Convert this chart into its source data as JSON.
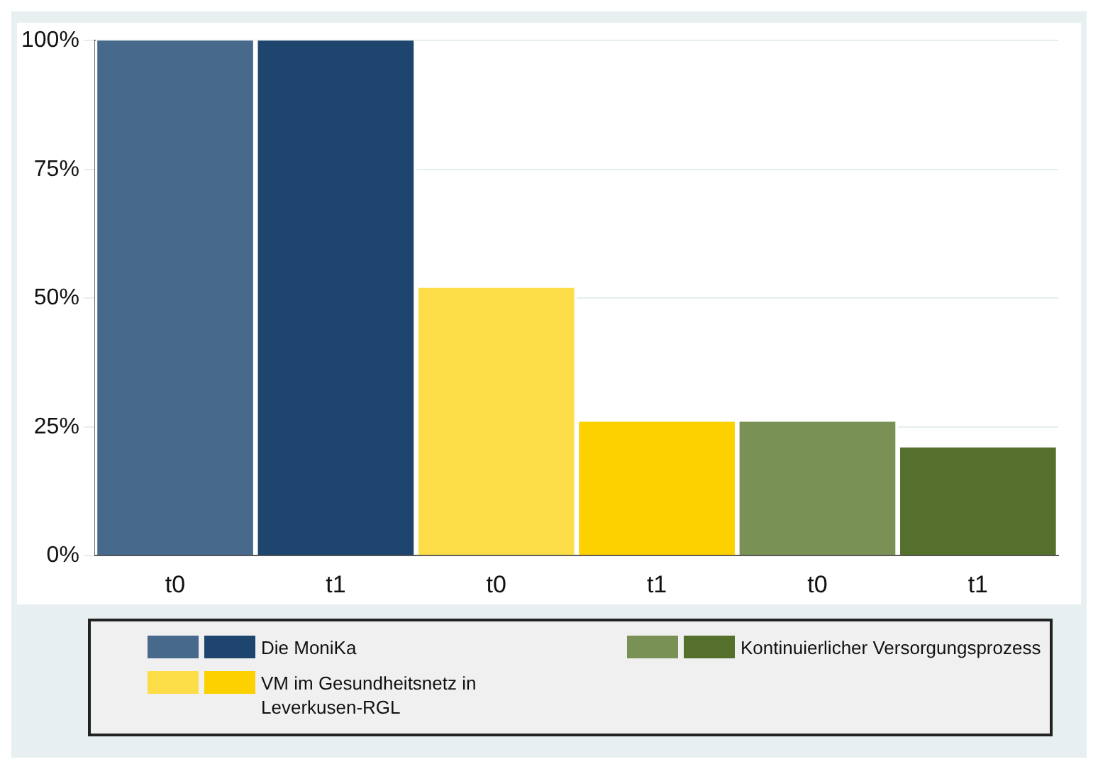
{
  "chart_data": {
    "type": "bar",
    "categories": [
      "t0",
      "t1",
      "t0",
      "t1",
      "t0",
      "t1"
    ],
    "series": [
      {
        "name": "Die MoniKa",
        "colors": [
          "#46698c",
          "#1d456d",
          null,
          null,
          null,
          null
        ],
        "values": [
          100,
          100,
          null,
          null,
          null,
          null
        ]
      },
      {
        "name": "VM im Gesundheitsnetz in Leverkusen-RGL",
        "colors": [
          null,
          null,
          "#fcdd48",
          "#fdd000",
          null,
          null
        ],
        "values": [
          null,
          null,
          52,
          26,
          null,
          null
        ]
      },
      {
        "name": "Kontinuierlicher Versorgungsprozess",
        "colors": [
          null,
          null,
          null,
          null,
          "#7a9155",
          "#55702c"
        ],
        "values": [
          null,
          null,
          null,
          null,
          26,
          21
        ]
      }
    ],
    "ylim": [
      0,
      100
    ],
    "yticks": [
      {
        "value": 0,
        "label": "0%"
      },
      {
        "value": 25,
        "label": "25%"
      },
      {
        "value": 50,
        "label": "50%"
      },
      {
        "value": 75,
        "label": "75%"
      },
      {
        "value": 100,
        "label": "100%"
      }
    ],
    "grid": "y",
    "legend": "bottom"
  }
}
